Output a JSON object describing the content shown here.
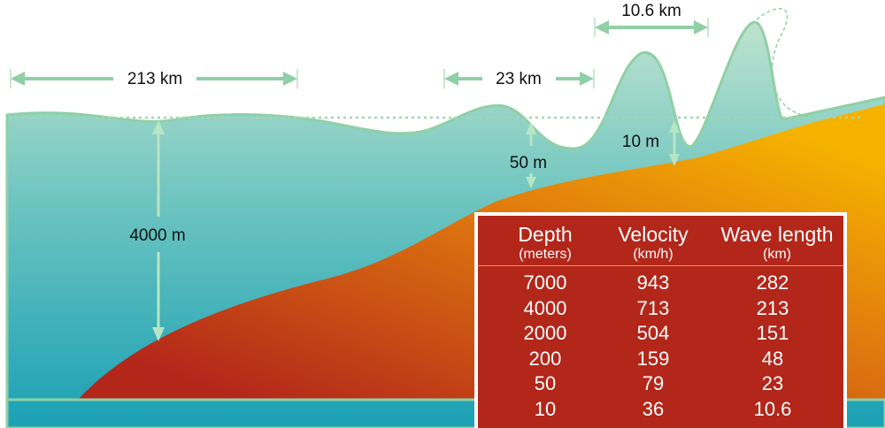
{
  "labels": {
    "wavelength_deep": "213 km",
    "wavelength_shallow": "23 km",
    "wavelength_coast": "10.6 km",
    "depth_deep": "4000 m",
    "depth_mid": "50 m",
    "depth_shallow": "10 m"
  },
  "colors": {
    "water_top": "#bfe3cf",
    "water_bottom": "#1aa0b4",
    "seabed_top": "#f5b300",
    "seabed_bottom": "#b3261a",
    "outline": "#8fd0a6",
    "table_bg": "#b3261a"
  },
  "table": {
    "headers": [
      {
        "title": "Depth",
        "unit": "(meters)"
      },
      {
        "title": "Velocity",
        "unit": "(km/h)"
      },
      {
        "title": "Wave length",
        "unit": "(km)"
      }
    ],
    "rows": [
      [
        "7000",
        "943",
        "282"
      ],
      [
        "4000",
        "713",
        "213"
      ],
      [
        "2000",
        "504",
        "151"
      ],
      [
        "200",
        "159",
        "48"
      ],
      [
        "50",
        "79",
        "23"
      ],
      [
        "10",
        "36",
        "10.6"
      ]
    ]
  }
}
